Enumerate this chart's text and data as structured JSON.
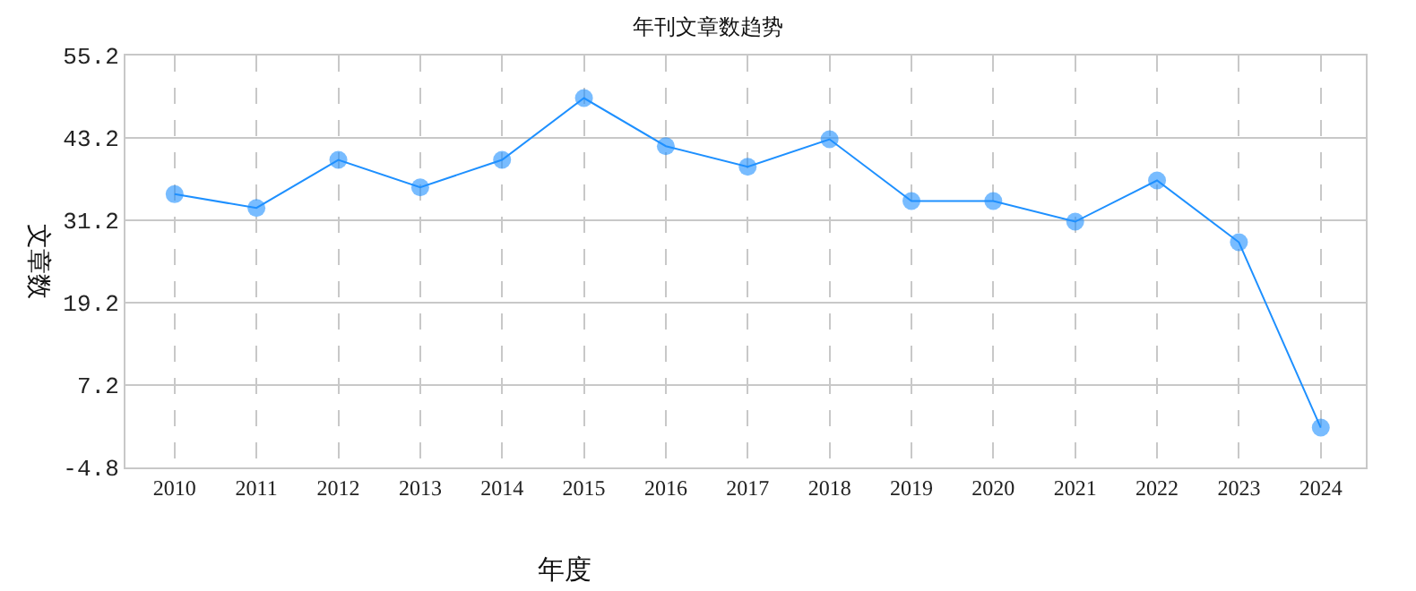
{
  "chart_data": {
    "type": "line",
    "title": "年刊文章数趋势",
    "xlabel": "年度",
    "ylabel": "文章数",
    "categories": [
      "2010",
      "2011",
      "2012",
      "2013",
      "2014",
      "2015",
      "2016",
      "2017",
      "2018",
      "2019",
      "2020",
      "2021",
      "2022",
      "2023",
      "2024"
    ],
    "series": [
      {
        "color": "#1e90ff",
        "values": [
          35,
          33,
          40,
          36,
          40,
          49,
          42,
          39,
          43,
          34,
          34,
          31,
          37,
          28,
          1
        ]
      }
    ],
    "ylim": [
      -4.8,
      55.2
    ],
    "yticks": [
      -4.8,
      7.2,
      19.2,
      31.2,
      43.2,
      55.2
    ],
    "grid": true,
    "marker": "circle",
    "line_style": "solid",
    "legend": false
  }
}
